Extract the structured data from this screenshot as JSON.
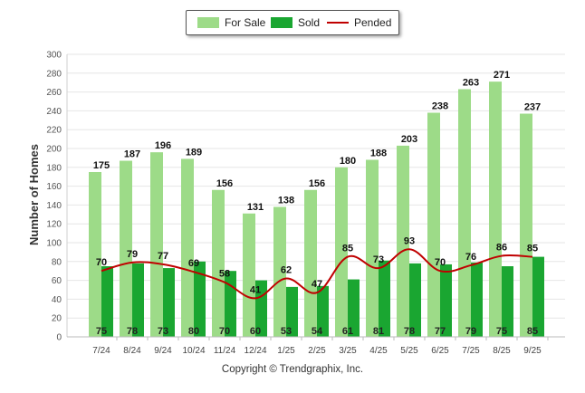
{
  "chart_data": {
    "type": "bar",
    "title": "",
    "xlabel": "",
    "ylabel": "Number of Homes",
    "ylim": [
      0,
      300
    ],
    "yticks": [
      0,
      20,
      40,
      60,
      80,
      100,
      120,
      140,
      160,
      180,
      200,
      220,
      240,
      260,
      280,
      300
    ],
    "categories": [
      "7/24",
      "8/24",
      "9/24",
      "10/24",
      "11/24",
      "12/24",
      "1/25",
      "2/25",
      "3/25",
      "4/25",
      "5/25",
      "6/25",
      "7/25",
      "8/25",
      "9/25"
    ],
    "series": [
      {
        "name": "For Sale",
        "type": "bar",
        "color": "#9ddb88",
        "values": [
          175,
          187,
          196,
          189,
          156,
          131,
          138,
          156,
          180,
          188,
          203,
          238,
          263,
          271,
          237
        ]
      },
      {
        "name": "Sold",
        "type": "bar",
        "color": "#1aa631",
        "values": [
          75,
          78,
          73,
          80,
          70,
          60,
          53,
          54,
          61,
          81,
          78,
          77,
          79,
          75,
          85
        ]
      },
      {
        "name": "Pended",
        "type": "line",
        "color": "#c00000",
        "values": [
          70,
          79,
          77,
          69,
          58,
          41,
          62,
          47,
          85,
          73,
          93,
          70,
          76,
          86,
          85
        ]
      }
    ],
    "legend_position": "top-center",
    "grid": true
  },
  "legend": {
    "for_sale": "For Sale",
    "sold": "Sold",
    "pended": "Pended"
  },
  "copyright": "Copyright © Trendgraphix, Inc."
}
